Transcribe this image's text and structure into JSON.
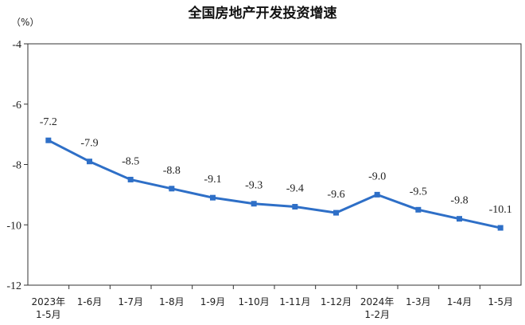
{
  "chart_data": {
    "type": "line",
    "title": "全国房地产开发投资增速",
    "unit_label": "（%）",
    "ylim": [
      -12,
      -4
    ],
    "yticks": [
      -4,
      -6,
      -8,
      -10,
      -12
    ],
    "grid": false,
    "legend": "none",
    "line_color": "#2e6fc7",
    "categories": [
      [
        "2023年",
        "1-5月"
      ],
      [
        "1-6月"
      ],
      [
        "1-7月"
      ],
      [
        "1-8月"
      ],
      [
        "1-9月"
      ],
      [
        "1-10月"
      ],
      [
        "1-11月"
      ],
      [
        "1-12月"
      ],
      [
        "2024年",
        "1-2月"
      ],
      [
        "1-3月"
      ],
      [
        "1-4月"
      ],
      [
        "1-5月"
      ]
    ],
    "values": [
      -7.2,
      -7.9,
      -8.5,
      -8.8,
      -9.1,
      -9.3,
      -9.4,
      -9.6,
      -9.0,
      -9.5,
      -9.8,
      -10.1
    ],
    "value_labels": [
      "-7.2",
      "-7.9",
      "-8.5",
      "-8.8",
      "-9.1",
      "-9.3",
      "-9.4",
      "-9.6",
      "-9.0",
      "-9.5",
      "-9.8",
      "-10.1"
    ]
  }
}
